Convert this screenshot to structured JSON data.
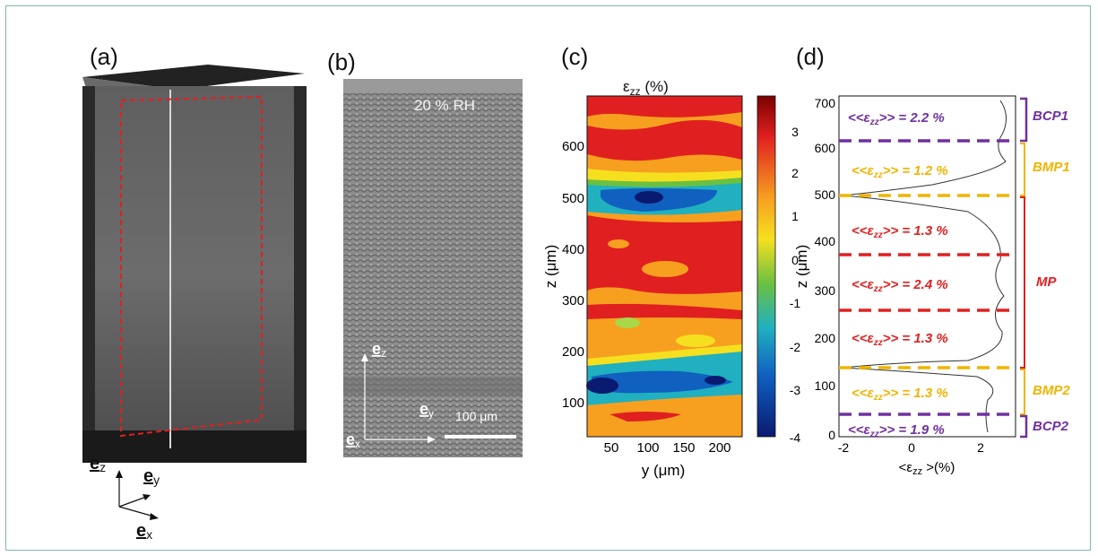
{
  "panels": {
    "a": {
      "label": "(a)",
      "axes": {
        "z": "e",
        "z_sub": "z",
        "y": "e",
        "y_sub": "y",
        "x": "e",
        "x_sub": "x"
      }
    },
    "b": {
      "label": "(b)",
      "rh": "20 % RH",
      "scale": "100 μm",
      "axes": {
        "z": "e",
        "z_sub": "z",
        "y": "e",
        "y_sub": "y",
        "x": "e",
        "x_sub": "x"
      }
    },
    "c": {
      "label": "(c)",
      "title_main": "ε",
      "title_sub": "zz",
      "title_unit": " (%)",
      "ylabel": "z (μm)",
      "xlabel": "y (μm)",
      "yticks": [
        "600",
        "500",
        "400",
        "300",
        "200",
        "100"
      ],
      "xticks": [
        "50",
        "100",
        "150",
        "200"
      ],
      "colorbar_ticks": [
        "3",
        "2",
        "1",
        "0",
        "-1",
        "-2",
        "-3",
        "-4"
      ]
    },
    "d": {
      "label": "(d)",
      "ylabel": "z (μm)",
      "xlabel": "<ε",
      "xlabel_sub": "zz",
      "xlabel_tail": " >(%)",
      "yticks": [
        "700",
        "600",
        "500",
        "400",
        "300",
        "200",
        "100",
        "0"
      ],
      "xticks": [
        "-2",
        "0",
        "2"
      ]
    }
  },
  "annotations": [
    {
      "pre": "<<ε",
      "sub": "zz",
      "post": ">> = 2.2 %",
      "color": "#7030a0"
    },
    {
      "pre": "<<ε",
      "sub": "zz",
      "post": ">> = 1.2 %",
      "color": "#f0b400"
    },
    {
      "pre": "<<ε",
      "sub": "zz",
      "post": ">>  = 1.3 %",
      "color": "#e02020"
    },
    {
      "pre": "<<ε",
      "sub": "zz",
      "post": ">> = 2.4 %",
      "color": "#e02020"
    },
    {
      "pre": "<<ε",
      "sub": "zz",
      "post": ">> = 1.3 %",
      "color": "#e02020"
    },
    {
      "pre": "<<ε",
      "sub": "zz",
      "post": ">> = 1.3 %",
      "color": "#f0b400"
    },
    {
      "pre": "<<ε",
      "sub": "zz",
      "post": ">> = 1.9 %",
      "color": "#7030a0"
    }
  ],
  "regions": [
    {
      "name": "BCP1",
      "color": "#7030a0"
    },
    {
      "name": "BMP1",
      "color": "#f0b400"
    },
    {
      "name": "MP",
      "color": "#e02020"
    },
    {
      "name": "BMP2",
      "color": "#f0b400"
    },
    {
      "name": "BCP2",
      "color": "#7030a0"
    }
  ],
  "colors": {
    "purple": "#7030a0",
    "yellow": "#f0b400",
    "red": "#e02020",
    "frame": "#7fb7b1"
  }
}
